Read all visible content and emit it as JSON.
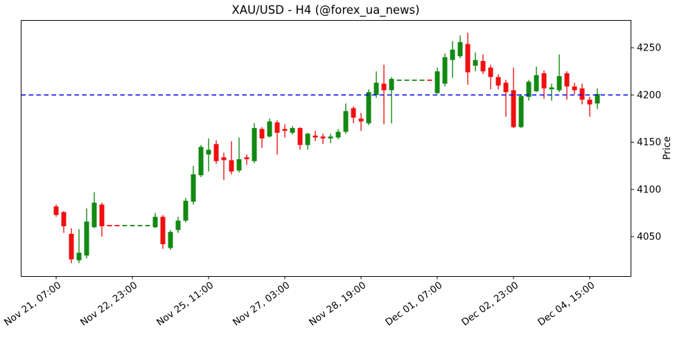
{
  "title": "XAU/USD - H4 (@forex_ua_news)",
  "y_axis": {
    "label": "Price",
    "ticks": [
      4050,
      4100,
      4150,
      4200,
      4250
    ]
  },
  "x_axis": {
    "tick_labels": [
      "Nov 21, 07:00",
      "Nov 22, 23:00",
      "Nov 25, 11:00",
      "Nov 27, 03:00",
      "Nov 28, 19:00",
      "Dec 01, 07:00",
      "Dec 02, 23:00",
      "Dec 04, 15:00"
    ],
    "tick_candle_indices": [
      0,
      10,
      20,
      30,
      40,
      50,
      60,
      70
    ]
  },
  "hline": {
    "price": 4200,
    "color": "#0000ff",
    "style": "dashed"
  },
  "colors": {
    "up": "#128912",
    "down": "#ef1010",
    "background": "#ffffff",
    "axis": "#000000"
  },
  "chart_data": {
    "type": "candlestick",
    "title": "XAU/USD - H4 (@forex_ua_news)",
    "xlabel": "",
    "ylabel": "Price",
    "ylim": [
      4008,
      4280
    ],
    "timeframe": "H4",
    "legend": null,
    "grid": false,
    "annotations": [
      {
        "type": "hline",
        "price": 4200
      }
    ],
    "candles_ohlc": [
      [
        4082,
        4084,
        4071,
        4073
      ],
      [
        4076,
        4077,
        4054,
        4061
      ],
      [
        4053,
        4059,
        4022,
        4026
      ],
      [
        4025,
        4058,
        4022,
        4033
      ],
      [
        4030,
        4080,
        4027,
        4066
      ],
      [
        4060,
        4097,
        4059,
        4086
      ],
      [
        4084,
        4086,
        4050,
        4061
      ],
      [
        4062.3,
        4062.3,
        4061.7,
        4061.7
      ],
      [
        4062.3,
        4062.3,
        4061.7,
        4061.7
      ],
      [
        4061.7,
        4062.3,
        4061.7,
        4062.3
      ],
      [
        4061.7,
        4062.3,
        4061.7,
        4062.3
      ],
      [
        4061.7,
        4062.3,
        4061.7,
        4062.3
      ],
      [
        4061.7,
        4062.3,
        4061.7,
        4062.3
      ],
      [
        4060,
        4075,
        4059,
        4071
      ],
      [
        4071,
        4073,
        4037,
        4042
      ],
      [
        4038,
        4057,
        4036,
        4055
      ],
      [
        4057,
        4071,
        4054,
        4067
      ],
      [
        4067,
        4091,
        4065,
        4088
      ],
      [
        4087,
        4125,
        4084,
        4116
      ],
      [
        4115,
        4147,
        4113,
        4145
      ],
      [
        4137,
        4154,
        4119,
        4142
      ],
      [
        4148,
        4152,
        4127,
        4130
      ],
      [
        4134,
        4139,
        4110,
        4131
      ],
      [
        4131,
        4151,
        4116,
        4119
      ],
      [
        4120,
        4155,
        4118,
        4132
      ],
      [
        4134,
        4137,
        4126,
        4132
      ],
      [
        4130,
        4170,
        4128,
        4165
      ],
      [
        4164,
        4166,
        4144,
        4154
      ],
      [
        4156,
        4175,
        4155,
        4172
      ],
      [
        4171,
        4173,
        4137,
        4160
      ],
      [
        4164,
        4169,
        4155,
        4162
      ],
      [
        4160,
        4167,
        4158,
        4165
      ],
      [
        4165,
        4166,
        4142,
        4147
      ],
      [
        4147,
        4160,
        4142,
        4159
      ],
      [
        4157,
        4162,
        4151,
        4155
      ],
      [
        4156,
        4159,
        4148,
        4154
      ],
      [
        4154,
        4159,
        4149,
        4156
      ],
      [
        4155,
        4164,
        4153,
        4161
      ],
      [
        4161,
        4191,
        4159,
        4183
      ],
      [
        4186,
        4188,
        4170,
        4176
      ],
      [
        4175,
        4181,
        4162,
        4172
      ],
      [
        4170,
        4206,
        4168,
        4203
      ],
      [
        4200,
        4225,
        4197,
        4213
      ],
      [
        4212,
        4232,
        4169,
        4205
      ],
      [
        4205,
        4219,
        4170,
        4217
      ],
      [
        4215.7,
        4216.3,
        4215.7,
        4216.3
      ],
      [
        4215.7,
        4216.3,
        4215.7,
        4216.3
      ],
      [
        4215.7,
        4216.3,
        4215.7,
        4216.3
      ],
      [
        4215.7,
        4216.3,
        4215.7,
        4216.3
      ],
      [
        4216.3,
        4216.3,
        4215.7,
        4215.7
      ],
      [
        4202,
        4229,
        4201,
        4225
      ],
      [
        4212,
        4244,
        4209,
        4240
      ],
      [
        4237,
        4257,
        4218,
        4248
      ],
      [
        4241,
        4263,
        4239,
        4256
      ],
      [
        4254,
        4266,
        4211,
        4224
      ],
      [
        4231,
        4245,
        4225,
        4237
      ],
      [
        4236,
        4243,
        4222,
        4225
      ],
      [
        4229,
        4232,
        4206,
        4219
      ],
      [
        4219,
        4222,
        4206,
        4210
      ],
      [
        4213,
        4216,
        4177,
        4203
      ],
      [
        4205,
        4229,
        4165,
        4166
      ],
      [
        4166,
        4201,
        4165,
        4199
      ],
      [
        4198,
        4216,
        4194,
        4214
      ],
      [
        4204,
        4230,
        4203,
        4221
      ],
      [
        4223,
        4226,
        4196,
        4207
      ],
      [
        4206,
        4212,
        4194,
        4208
      ],
      [
        4205,
        4243,
        4203,
        4220
      ],
      [
        4223,
        4225,
        4195,
        4209
      ],
      [
        4209,
        4213,
        4201,
        4205
      ],
      [
        4207,
        4212,
        4190,
        4195
      ],
      [
        4195,
        4198,
        4177,
        4190
      ],
      [
        4191,
        4207,
        4185,
        4201
      ]
    ]
  }
}
